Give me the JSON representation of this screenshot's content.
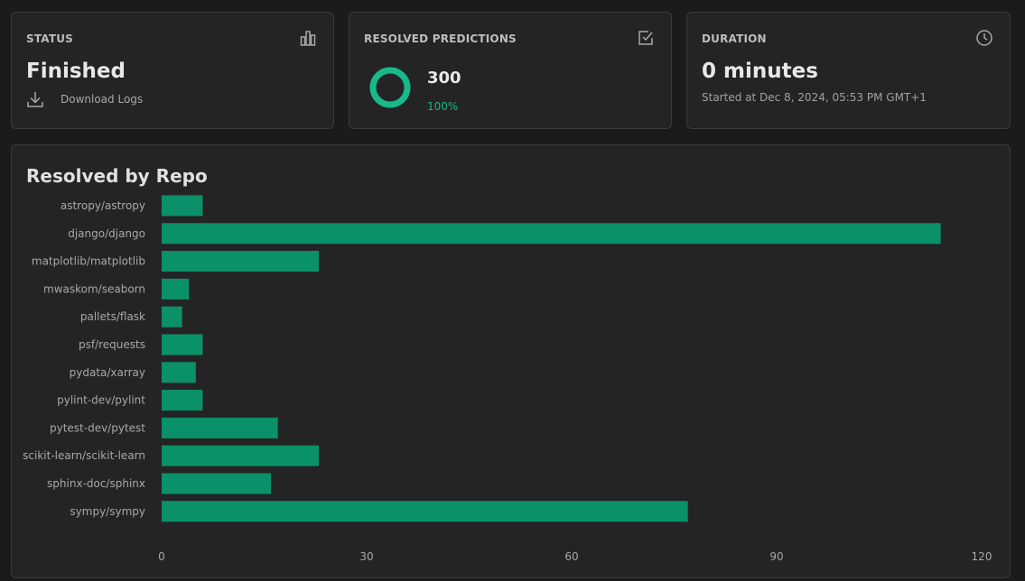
{
  "cards": {
    "status": {
      "label": "STATUS",
      "value": "Finished",
      "download_label": "Download Logs"
    },
    "resolved": {
      "label": "RESOLVED PREDICTIONS",
      "count": "300",
      "percent_text": "100%",
      "fraction": 1.0
    },
    "duration": {
      "label": "DURATION",
      "value": "0 minutes",
      "started": "Started at Dec 8, 2024, 05:53 PM GMT+1"
    }
  },
  "icons": {
    "status": "bar-chart-icon",
    "resolved": "check-square-icon",
    "duration": "clock-icon",
    "download": "download-icon"
  },
  "colors": {
    "accent": "#0b9169",
    "accent_text": "#18b98a",
    "card_bg": "#242424",
    "page_bg": "#1b1b1b"
  },
  "chart_data": {
    "type": "bar",
    "orientation": "horizontal",
    "title": "Resolved by Repo",
    "categories": [
      "astropy/astropy",
      "django/django",
      "matplotlib/matplotlib",
      "mwaskom/seaborn",
      "pallets/flask",
      "psf/requests",
      "pydata/xarray",
      "pylint-dev/pylint",
      "pytest-dev/pytest",
      "scikit-learn/scikit-learn",
      "sphinx-doc/sphinx",
      "sympy/sympy"
    ],
    "values": [
      6,
      114,
      23,
      4,
      3,
      6,
      5,
      6,
      17,
      23,
      16,
      77
    ],
    "xlim": [
      0,
      120
    ],
    "xticks": [
      "0",
      "30",
      "60",
      "90",
      "120"
    ],
    "grid": false,
    "color": "#0b9169"
  }
}
